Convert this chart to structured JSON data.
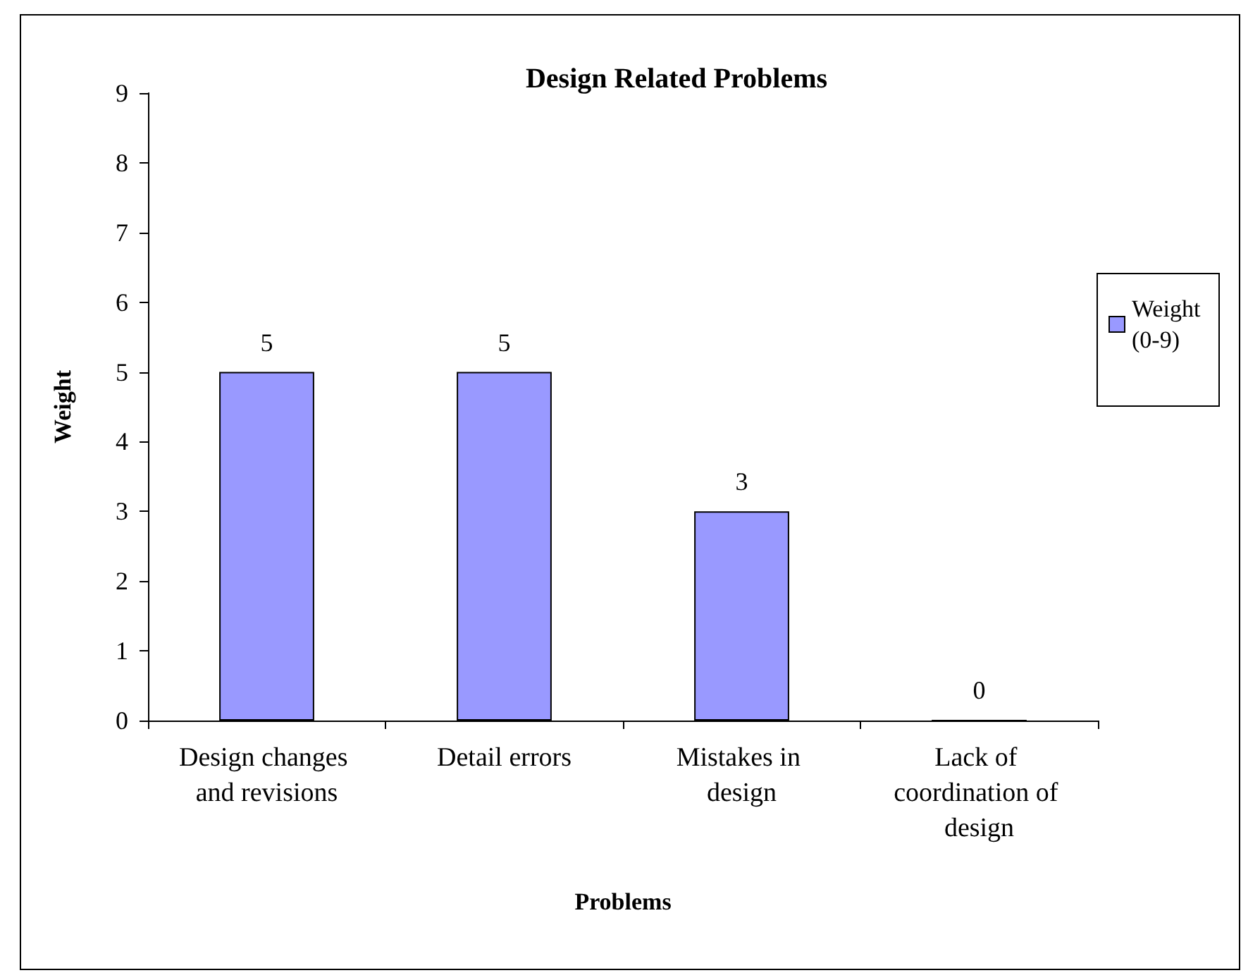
{
  "chart_data": {
    "type": "bar",
    "title": "Design Related Problems",
    "xlabel": "Problems",
    "ylabel": "Weight",
    "categories": [
      "Design changes and revisions",
      "Detail errors",
      "Mistakes in design",
      "Lack of coordination of design"
    ],
    "series": [
      {
        "name": "Weight (0-9)",
        "color": "#9999ff",
        "values": [
          5,
          5,
          3,
          0
        ]
      }
    ],
    "ylim": [
      0,
      9
    ],
    "yticks": [
      0,
      1,
      2,
      3,
      4,
      5,
      6,
      7,
      8,
      9
    ],
    "grid": false,
    "legend": "right",
    "data_labels": true
  }
}
